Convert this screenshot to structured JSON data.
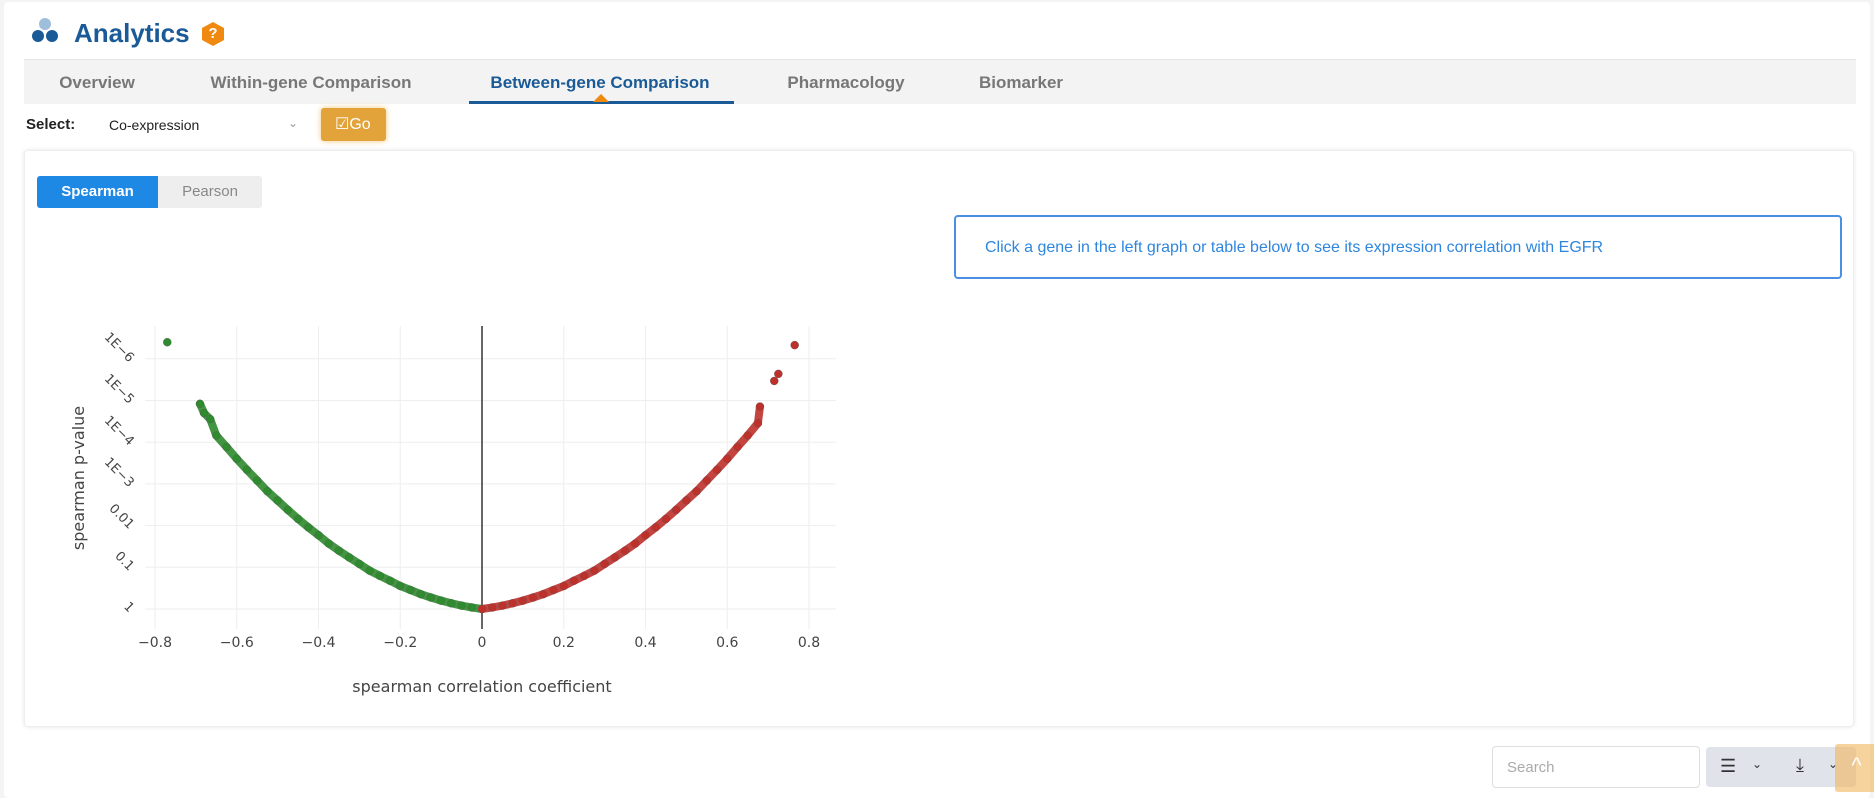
{
  "header": {
    "title": "Analytics",
    "help_icon": "question-hexagon-icon"
  },
  "tabs": [
    {
      "label": "Overview"
    },
    {
      "label": "Within-gene Comparison"
    },
    {
      "label": "Between-gene Comparison",
      "active": true
    },
    {
      "label": "Pharmacology"
    },
    {
      "label": "Biomarker"
    }
  ],
  "select": {
    "label": "Select:",
    "value": "Co-expression",
    "go_label": "Go"
  },
  "method_toggle": {
    "options": [
      "Spearman",
      "Pearson"
    ],
    "selected": "Spearman"
  },
  "info_message": "Click a gene in the left graph or table below to see its expression correlation with EGFR",
  "table_tools": {
    "search_placeholder": "Search",
    "columns_icon": "list-icon",
    "download_icon": "download-icon",
    "scroll_top_icon": "chevron-up-icon"
  },
  "colors": {
    "accent": "#1a5a96",
    "positive": "#c0302b",
    "negative": "#2e8b2e",
    "button": "#e1a33a"
  },
  "chart_data": {
    "type": "scatter",
    "xlabel": "spearman correlation coefficient",
    "ylabel": "spearman p-value",
    "xlim": [
      -0.85,
      0.85
    ],
    "ylim_log10": [
      -6.5,
      0.25
    ],
    "y_scale": "log-reversed",
    "x_ticks": [
      "−0.8",
      "−0.6",
      "−0.4",
      "−0.2",
      "0",
      "0.2",
      "0.4",
      "0.6",
      "0.8"
    ],
    "x_tick_values": [
      -0.8,
      -0.6,
      -0.4,
      -0.2,
      0,
      0.2,
      0.4,
      0.6,
      0.8
    ],
    "y_ticks": [
      "1E−6",
      "1E−5",
      "1E−4",
      "1E−3",
      "0.01",
      "0.1",
      "1"
    ],
    "y_tick_values": [
      1e-06,
      1e-05,
      0.0001,
      0.001,
      0.01,
      0.1,
      1
    ],
    "grid": true,
    "zero_line": true,
    "series": [
      {
        "color": "#2e8b2e",
        "x": [
          0,
          -0.025,
          -0.05,
          -0.075,
          -0.1,
          -0.125,
          -0.15,
          -0.175,
          -0.2,
          -0.225,
          -0.25,
          -0.275,
          -0.3,
          -0.325,
          -0.35,
          -0.375,
          -0.4,
          -0.425,
          -0.45,
          -0.475,
          -0.5,
          -0.525,
          -0.55,
          -0.575,
          -0.6,
          -0.625,
          -0.65,
          -0.665,
          -0.68,
          -0.69,
          -0.77
        ],
        "y": [
          1,
          0.92,
          0.83,
          0.73,
          0.63,
          0.53,
          0.44,
          0.35,
          0.28,
          0.21,
          0.16,
          0.12,
          0.083,
          0.058,
          0.04,
          0.027,
          0.017,
          0.011,
          0.0069,
          0.0042,
          0.0025,
          0.0015,
          0.00083,
          0.00046,
          0.00025,
          0.00013,
          6.9e-05,
          2.8e-05,
          2e-05,
          1.2e-05,
          4e-07
        ]
      },
      {
        "color": "#c0302b",
        "x": [
          0,
          0.025,
          0.05,
          0.075,
          0.1,
          0.125,
          0.15,
          0.175,
          0.2,
          0.225,
          0.25,
          0.275,
          0.3,
          0.325,
          0.35,
          0.375,
          0.4,
          0.425,
          0.45,
          0.475,
          0.5,
          0.525,
          0.55,
          0.575,
          0.6,
          0.625,
          0.65,
          0.675,
          0.68,
          0.715,
          0.725,
          0.765
        ],
        "y": [
          1,
          0.92,
          0.83,
          0.73,
          0.63,
          0.53,
          0.44,
          0.35,
          0.28,
          0.21,
          0.16,
          0.12,
          0.083,
          0.058,
          0.04,
          0.027,
          0.017,
          0.011,
          0.0069,
          0.0042,
          0.0025,
          0.0015,
          0.00083,
          0.00046,
          0.00025,
          0.00013,
          6.9e-05,
          3.5e-05,
          1.4e-05,
          3.4e-06,
          2.3e-06,
          4.7e-07
        ]
      }
    ]
  }
}
